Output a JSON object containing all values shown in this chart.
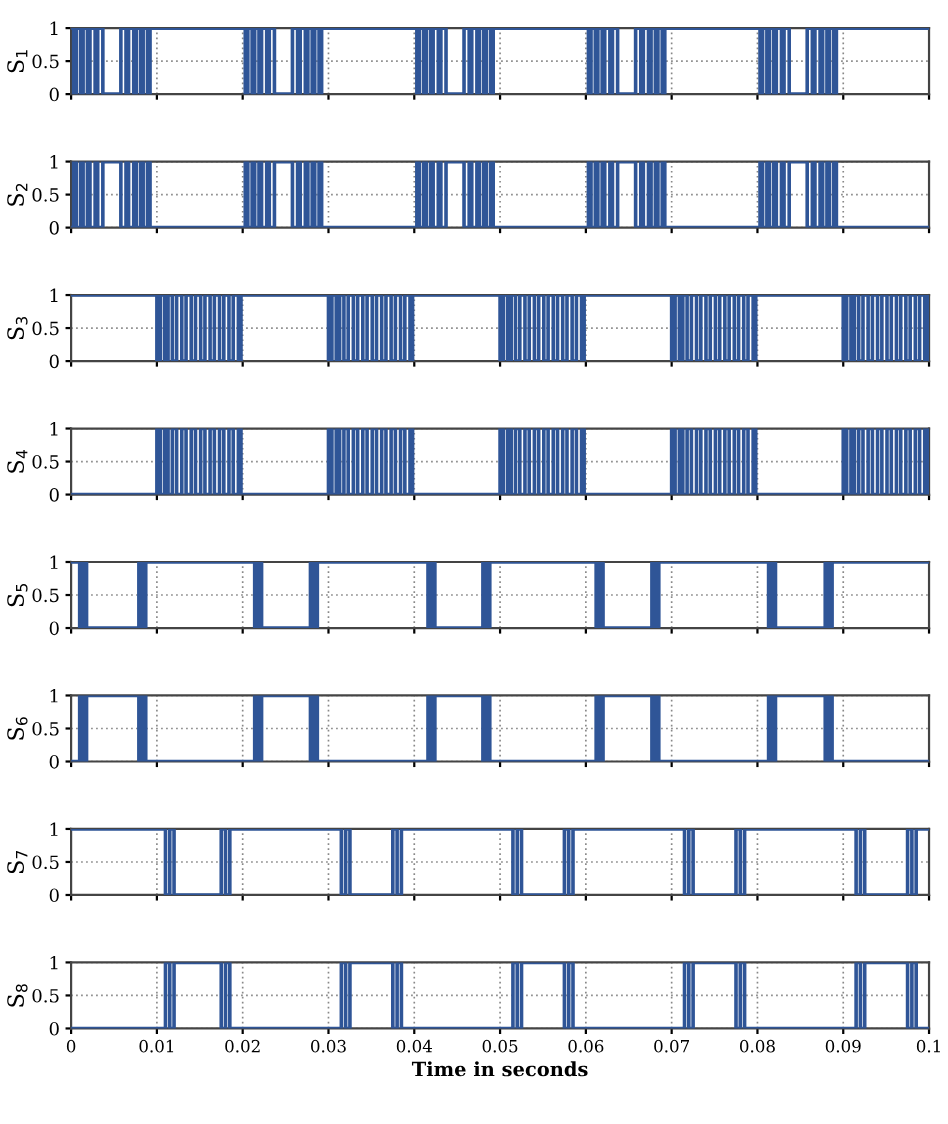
{
  "chart_data": [
    {
      "type": "step",
      "ylabel": "S$_{1}$",
      "color": "#2f5597",
      "line_style": "solid",
      "grid": true,
      "tick_labels": "y",
      "xlim": [
        0,
        0.1
      ],
      "ylim": [
        0,
        1
      ],
      "yticks": [
        0,
        0.5,
        1
      ],
      "xticks": [
        0,
        0.01,
        0.02,
        0.03,
        0.04,
        0.05,
        0.06,
        0.07,
        0.08,
        0.09,
        0.1
      ],
      "x": [
        0,
        0.0003,
        0.0006,
        0.0011,
        0.0014,
        0.0019,
        0.0022,
        0.0028,
        0.0031,
        0.0037,
        0.0058,
        0.0064,
        0.0067,
        0.0073,
        0.0076,
        0.0081,
        0.0084,
        0.0089,
        0.0092,
        0.02,
        0.0203,
        0.0206,
        0.0211,
        0.0214,
        0.0219,
        0.0222,
        0.0228,
        0.0231,
        0.0237,
        0.0258,
        0.0264,
        0.0267,
        0.0273,
        0.0276,
        0.0281,
        0.0284,
        0.0289,
        0.0292,
        0.04,
        0.0403,
        0.0406,
        0.0411,
        0.0414,
        0.0419,
        0.0422,
        0.0428,
        0.0431,
        0.0437,
        0.0458,
        0.0464,
        0.0467,
        0.0473,
        0.0476,
        0.0481,
        0.0484,
        0.0489,
        0.0492,
        0.06,
        0.0603,
        0.0606,
        0.0611,
        0.0614,
        0.0619,
        0.0622,
        0.0628,
        0.0631,
        0.0637,
        0.0658,
        0.0664,
        0.0667,
        0.0673,
        0.0676,
        0.0681,
        0.0684,
        0.0689,
        0.0692,
        0.08,
        0.0803,
        0.0806,
        0.0811,
        0.0814,
        0.0819,
        0.0822,
        0.0828,
        0.0831,
        0.0837,
        0.0858,
        0.0864,
        0.0867,
        0.0873,
        0.0876,
        0.0881,
        0.0884,
        0.0889,
        0.0892,
        0.1
      ],
      "values": [
        1,
        0,
        1,
        0,
        1,
        0,
        1,
        0,
        1,
        0,
        1,
        0,
        1,
        0,
        1,
        0,
        1,
        0,
        1,
        1,
        0,
        1,
        0,
        1,
        0,
        1,
        0,
        1,
        0,
        1,
        0,
        1,
        0,
        1,
        0,
        1,
        0,
        1,
        1,
        0,
        1,
        0,
        1,
        0,
        1,
        0,
        1,
        0,
        1,
        0,
        1,
        0,
        1,
        0,
        1,
        0,
        1,
        1,
        0,
        1,
        0,
        1,
        0,
        1,
        0,
        1,
        0,
        1,
        0,
        1,
        0,
        1,
        0,
        1,
        0,
        1,
        1,
        0,
        1,
        0,
        1,
        0,
        1,
        0,
        1,
        0,
        1,
        0,
        1,
        0,
        1,
        0,
        1,
        0,
        1,
        1
      ]
    },
    {
      "type": "step",
      "ylabel": "S$_{2}$",
      "color": "#2f5597",
      "line_style": "solid",
      "grid": true,
      "tick_labels": "y",
      "xlim": [
        0,
        0.1
      ],
      "ylim": [
        0,
        1
      ],
      "yticks": [
        0,
        0.5,
        1
      ],
      "xticks": [
        0,
        0.01,
        0.02,
        0.03,
        0.04,
        0.05,
        0.06,
        0.07,
        0.08,
        0.09,
        0.1
      ],
      "x": [
        0,
        0.0003,
        0.0006,
        0.0011,
        0.0014,
        0.0019,
        0.0022,
        0.0028,
        0.0031,
        0.0037,
        0.0058,
        0.0064,
        0.0067,
        0.0073,
        0.0076,
        0.0081,
        0.0084,
        0.0089,
        0.0092,
        0.02,
        0.0203,
        0.0206,
        0.0211,
        0.0214,
        0.0219,
        0.0222,
        0.0228,
        0.0231,
        0.0237,
        0.0258,
        0.0264,
        0.0267,
        0.0273,
        0.0276,
        0.0281,
        0.0284,
        0.0289,
        0.0292,
        0.04,
        0.0403,
        0.0406,
        0.0411,
        0.0414,
        0.0419,
        0.0422,
        0.0428,
        0.0431,
        0.0437,
        0.0458,
        0.0464,
        0.0467,
        0.0473,
        0.0476,
        0.0481,
        0.0484,
        0.0489,
        0.0492,
        0.06,
        0.0603,
        0.0606,
        0.0611,
        0.0614,
        0.0619,
        0.0622,
        0.0628,
        0.0631,
        0.0637,
        0.0658,
        0.0664,
        0.0667,
        0.0673,
        0.0676,
        0.0681,
        0.0684,
        0.0689,
        0.0692,
        0.08,
        0.0803,
        0.0806,
        0.0811,
        0.0814,
        0.0819,
        0.0822,
        0.0828,
        0.0831,
        0.0837,
        0.0858,
        0.0864,
        0.0867,
        0.0873,
        0.0876,
        0.0881,
        0.0884,
        0.0889,
        0.0892,
        0.1
      ],
      "values": [
        0,
        1,
        0,
        1,
        0,
        1,
        0,
        1,
        0,
        1,
        0,
        1,
        0,
        1,
        0,
        1,
        0,
        1,
        0,
        0,
        1,
        0,
        1,
        0,
        1,
        0,
        1,
        0,
        1,
        0,
        1,
        0,
        1,
        0,
        1,
        0,
        1,
        0,
        0,
        1,
        0,
        1,
        0,
        1,
        0,
        1,
        0,
        1,
        0,
        1,
        0,
        1,
        0,
        1,
        0,
        1,
        0,
        0,
        1,
        0,
        1,
        0,
        1,
        0,
        1,
        0,
        1,
        0,
        1,
        0,
        1,
        0,
        1,
        0,
        1,
        0,
        0,
        1,
        0,
        1,
        0,
        1,
        0,
        1,
        0,
        1,
        0,
        1,
        0,
        1,
        0,
        1,
        0,
        1,
        0,
        0
      ]
    },
    {
      "type": "step",
      "ylabel": "S$_{3}$",
      "color": "#2f5597",
      "line_style": "solid",
      "grid": true,
      "tick_labels": "y",
      "xlim": [
        0,
        0.1
      ],
      "ylim": [
        0,
        1
      ],
      "yticks": [
        0,
        0.5,
        1
      ],
      "xticks": [
        0,
        0.01,
        0.02,
        0.03,
        0.04,
        0.05,
        0.06,
        0.07,
        0.08,
        0.09,
        0.1
      ],
      "x": [
        0,
        0.01,
        0.0104,
        0.0109,
        0.0113,
        0.0118,
        0.0123,
        0.0129,
        0.0134,
        0.014,
        0.0145,
        0.0151,
        0.0156,
        0.0162,
        0.0167,
        0.0173,
        0.0178,
        0.0184,
        0.0189,
        0.0195,
        0.0198,
        0.03,
        0.0304,
        0.0309,
        0.0313,
        0.0318,
        0.0323,
        0.0329,
        0.0334,
        0.034,
        0.0345,
        0.0351,
        0.0356,
        0.0362,
        0.0367,
        0.0373,
        0.0378,
        0.0384,
        0.0389,
        0.0395,
        0.0398,
        0.05,
        0.0504,
        0.0509,
        0.0513,
        0.0518,
        0.0523,
        0.0529,
        0.0534,
        0.054,
        0.0545,
        0.0551,
        0.0556,
        0.0562,
        0.0567,
        0.0573,
        0.0578,
        0.0584,
        0.0589,
        0.0595,
        0.0598,
        0.07,
        0.0704,
        0.0709,
        0.0713,
        0.0718,
        0.0723,
        0.0729,
        0.0734,
        0.074,
        0.0745,
        0.0751,
        0.0756,
        0.0762,
        0.0767,
        0.0773,
        0.0778,
        0.0784,
        0.0789,
        0.0795,
        0.0798,
        0.09,
        0.0904,
        0.0909,
        0.0913,
        0.0918,
        0.0923,
        0.0929,
        0.0934,
        0.094,
        0.0945,
        0.0951,
        0.0956,
        0.0962,
        0.0967,
        0.0973,
        0.0978,
        0.0984,
        0.0989,
        0.0995,
        0.0998,
        0.1
      ],
      "values": [
        1,
        0,
        1,
        0,
        1,
        0,
        1,
        0,
        1,
        0,
        1,
        0,
        1,
        0,
        1,
        0,
        1,
        0,
        1,
        0,
        1,
        0,
        1,
        0,
        1,
        0,
        1,
        0,
        1,
        0,
        1,
        0,
        1,
        0,
        1,
        0,
        1,
        0,
        1,
        0,
        1,
        0,
        1,
        0,
        1,
        0,
        1,
        0,
        1,
        0,
        1,
        0,
        1,
        0,
        1,
        0,
        1,
        0,
        1,
        0,
        1,
        0,
        1,
        0,
        1,
        0,
        1,
        0,
        1,
        0,
        1,
        0,
        1,
        0,
        1,
        0,
        1,
        0,
        1,
        0,
        1,
        0,
        1,
        0,
        1,
        0,
        1,
        0,
        1,
        0,
        1,
        0,
        1,
        0,
        1,
        0,
        1,
        0,
        1,
        0,
        1,
        1
      ]
    },
    {
      "type": "step",
      "ylabel": "S$_{4}$",
      "color": "#2f5597",
      "line_style": "solid",
      "grid": true,
      "tick_labels": "y",
      "xlim": [
        0,
        0.1
      ],
      "ylim": [
        0,
        1
      ],
      "yticks": [
        0,
        0.5,
        1
      ],
      "xticks": [
        0,
        0.01,
        0.02,
        0.03,
        0.04,
        0.05,
        0.06,
        0.07,
        0.08,
        0.09,
        0.1
      ],
      "x": [
        0,
        0.01,
        0.0104,
        0.0109,
        0.0113,
        0.0118,
        0.0123,
        0.0129,
        0.0134,
        0.014,
        0.0145,
        0.0151,
        0.0156,
        0.0162,
        0.0167,
        0.0173,
        0.0178,
        0.0184,
        0.0189,
        0.0195,
        0.0198,
        0.03,
        0.0304,
        0.0309,
        0.0313,
        0.0318,
        0.0323,
        0.0329,
        0.0334,
        0.034,
        0.0345,
        0.0351,
        0.0356,
        0.0362,
        0.0367,
        0.0373,
        0.0378,
        0.0384,
        0.0389,
        0.0395,
        0.0398,
        0.05,
        0.0504,
        0.0509,
        0.0513,
        0.0518,
        0.0523,
        0.0529,
        0.0534,
        0.054,
        0.0545,
        0.0551,
        0.0556,
        0.0562,
        0.0567,
        0.0573,
        0.0578,
        0.0584,
        0.0589,
        0.0595,
        0.0598,
        0.07,
        0.0704,
        0.0709,
        0.0713,
        0.0718,
        0.0723,
        0.0729,
        0.0734,
        0.074,
        0.0745,
        0.0751,
        0.0756,
        0.0762,
        0.0767,
        0.0773,
        0.0778,
        0.0784,
        0.0789,
        0.0795,
        0.0798,
        0.09,
        0.0904,
        0.0909,
        0.0913,
        0.0918,
        0.0923,
        0.0929,
        0.0934,
        0.094,
        0.0945,
        0.0951,
        0.0956,
        0.0962,
        0.0967,
        0.0973,
        0.0978,
        0.0984,
        0.0989,
        0.0995,
        0.0998,
        0.1
      ],
      "values": [
        0,
        1,
        0,
        1,
        0,
        1,
        0,
        1,
        0,
        1,
        0,
        1,
        0,
        1,
        0,
        1,
        0,
        1,
        0,
        1,
        0,
        1,
        0,
        1,
        0,
        1,
        0,
        1,
        0,
        1,
        0,
        1,
        0,
        1,
        0,
        1,
        0,
        1,
        0,
        1,
        0,
        1,
        0,
        1,
        0,
        1,
        0,
        1,
        0,
        1,
        0,
        1,
        0,
        1,
        0,
        1,
        0,
        1,
        0,
        1,
        0,
        1,
        0,
        1,
        0,
        1,
        0,
        1,
        0,
        1,
        0,
        1,
        0,
        1,
        0,
        1,
        0,
        1,
        0,
        1,
        0,
        1,
        0,
        1,
        0,
        1,
        0,
        1,
        0,
        1,
        0,
        1,
        0,
        1,
        0,
        1,
        0,
        1,
        0,
        1,
        0,
        0
      ]
    },
    {
      "type": "step",
      "ylabel": "S$_{5}$",
      "color": "#2f5597",
      "line_style": "solid",
      "grid": true,
      "tick_labels": "y",
      "xlim": [
        0,
        0.1
      ],
      "ylim": [
        0,
        1
      ],
      "yticks": [
        0,
        0.5,
        1
      ],
      "xticks": [
        0,
        0.01,
        0.02,
        0.03,
        0.04,
        0.05,
        0.06,
        0.07,
        0.08,
        0.09,
        0.1
      ],
      "x": [
        0,
        0.001,
        0.0014,
        0.0018,
        0.0079,
        0.0083,
        0.0087,
        0.0214,
        0.0218,
        0.0222,
        0.0279,
        0.0283,
        0.0287,
        0.0416,
        0.042,
        0.0424,
        0.048,
        0.0484,
        0.0488,
        0.0612,
        0.0616,
        0.062,
        0.0677,
        0.0681,
        0.0685,
        0.0813,
        0.0817,
        0.0821,
        0.0879,
        0.0883,
        0.0887,
        0.1
      ],
      "values": [
        1,
        0,
        1,
        0,
        1,
        0,
        1,
        0,
        1,
        0,
        1,
        0,
        1,
        0,
        1,
        0,
        1,
        0,
        1,
        0,
        1,
        0,
        1,
        0,
        1,
        0,
        1,
        0,
        1,
        0,
        1,
        1
      ]
    },
    {
      "type": "step",
      "ylabel": "S$_{6}$",
      "color": "#2f5597",
      "line_style": "solid",
      "grid": true,
      "tick_labels": "y",
      "xlim": [
        0,
        0.1
      ],
      "ylim": [
        0,
        1
      ],
      "yticks": [
        0,
        0.5,
        1
      ],
      "xticks": [
        0,
        0.01,
        0.02,
        0.03,
        0.04,
        0.05,
        0.06,
        0.07,
        0.08,
        0.09,
        0.1
      ],
      "x": [
        0,
        0.001,
        0.0014,
        0.0018,
        0.0079,
        0.0083,
        0.0087,
        0.0214,
        0.0218,
        0.0222,
        0.0279,
        0.0283,
        0.0287,
        0.0416,
        0.042,
        0.0424,
        0.048,
        0.0484,
        0.0488,
        0.0612,
        0.0616,
        0.062,
        0.0677,
        0.0681,
        0.0685,
        0.0813,
        0.0817,
        0.0821,
        0.0879,
        0.0883,
        0.0887,
        0.1
      ],
      "values": [
        0,
        1,
        0,
        1,
        0,
        1,
        0,
        1,
        0,
        1,
        0,
        1,
        0,
        1,
        0,
        1,
        0,
        1,
        0,
        1,
        0,
        1,
        0,
        1,
        0,
        1,
        0,
        1,
        0,
        1,
        0,
        0
      ]
    },
    {
      "type": "step",
      "ylabel": "S$_{7}$",
      "color": "#2f5597",
      "line_style": "solid",
      "grid": true,
      "tick_labels": "y",
      "xlim": [
        0,
        0.1
      ],
      "ylim": [
        0,
        1
      ],
      "yticks": [
        0,
        0.5,
        1
      ],
      "xticks": [
        0,
        0.01,
        0.02,
        0.03,
        0.04,
        0.05,
        0.06,
        0.07,
        0.08,
        0.09,
        0.1
      ],
      "x": [
        0,
        0.011,
        0.0115,
        0.012,
        0.0175,
        0.018,
        0.0185,
        0.0315,
        0.032,
        0.0325,
        0.0375,
        0.038,
        0.0385,
        0.0515,
        0.052,
        0.0525,
        0.0575,
        0.058,
        0.0585,
        0.0715,
        0.072,
        0.0725,
        0.0775,
        0.078,
        0.0785,
        0.0915,
        0.092,
        0.0925,
        0.0975,
        0.098,
        0.0985,
        0.1
      ],
      "values": [
        1,
        0,
        1,
        0,
        1,
        0,
        1,
        0,
        1,
        0,
        1,
        0,
        1,
        0,
        1,
        0,
        1,
        0,
        1,
        0,
        1,
        0,
        1,
        0,
        1,
        0,
        1,
        0,
        1,
        0,
        1,
        1
      ]
    },
    {
      "type": "step",
      "ylabel": "S$_{8}$",
      "xlabel": "Time in seconds",
      "color": "#2f5597",
      "line_style": "solid",
      "grid": true,
      "xlim": [
        0,
        0.1
      ],
      "ylim": [
        0,
        1
      ],
      "yticks": [
        0,
        0.5,
        1
      ],
      "xticks": [
        0,
        0.01,
        0.02,
        0.03,
        0.04,
        0.05,
        0.06,
        0.07,
        0.08,
        0.09,
        0.1
      ],
      "x": [
        0,
        0.011,
        0.0115,
        0.012,
        0.0175,
        0.018,
        0.0185,
        0.0315,
        0.032,
        0.0325,
        0.0375,
        0.038,
        0.0385,
        0.0515,
        0.052,
        0.0525,
        0.0575,
        0.058,
        0.0585,
        0.0715,
        0.072,
        0.0725,
        0.0775,
        0.078,
        0.0785,
        0.0915,
        0.092,
        0.0925,
        0.0975,
        0.098,
        0.0985,
        0.1
      ],
      "values": [
        0,
        1,
        0,
        1,
        0,
        1,
        0,
        1,
        0,
        1,
        0,
        1,
        0,
        1,
        0,
        1,
        0,
        1,
        0,
        1,
        0,
        1,
        0,
        1,
        0,
        1,
        0,
        1,
        0,
        1,
        0,
        0
      ]
    }
  ]
}
